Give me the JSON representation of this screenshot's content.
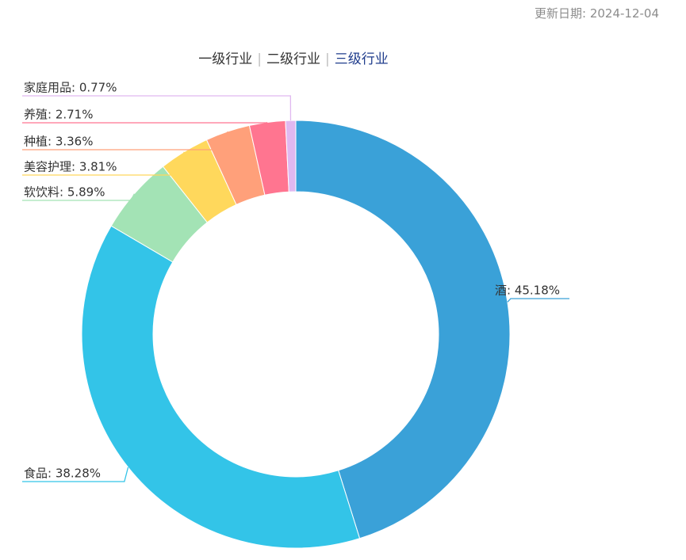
{
  "header": {
    "update_date": "更新日期: 2024-12-04"
  },
  "tabs": [
    {
      "label": "一级行业",
      "active": false
    },
    {
      "label": "二级行业",
      "active": false
    },
    {
      "label": "三级行业",
      "active": true
    }
  ],
  "chart_data": {
    "type": "pie",
    "variant": "donut",
    "unit": "%",
    "slices": [
      {
        "label": "酒",
        "value": 45.18,
        "color": "#3aa1d8"
      },
      {
        "label": "食品",
        "value": 38.28,
        "color": "#33c4e8"
      },
      {
        "label": "软饮料",
        "value": 5.89,
        "color": "#a3e3b5"
      },
      {
        "label": "美容护理",
        "value": 3.81,
        "color": "#ffd85c"
      },
      {
        "label": "种植",
        "value": 3.36,
        "color": "#ffa07a"
      },
      {
        "label": "养殖",
        "value": 2.71,
        "color": "#ff7590"
      },
      {
        "label": "家庭用品",
        "value": 0.77,
        "color": "#e0b8f0"
      }
    ],
    "label_texts": [
      "酒: 45.18%",
      "食品: 38.28%",
      "软饮料: 5.89%",
      "美容护理: 3.81%",
      "种植: 3.36%",
      "养殖: 2.71%",
      "家庭用品: 0.77%"
    ]
  }
}
